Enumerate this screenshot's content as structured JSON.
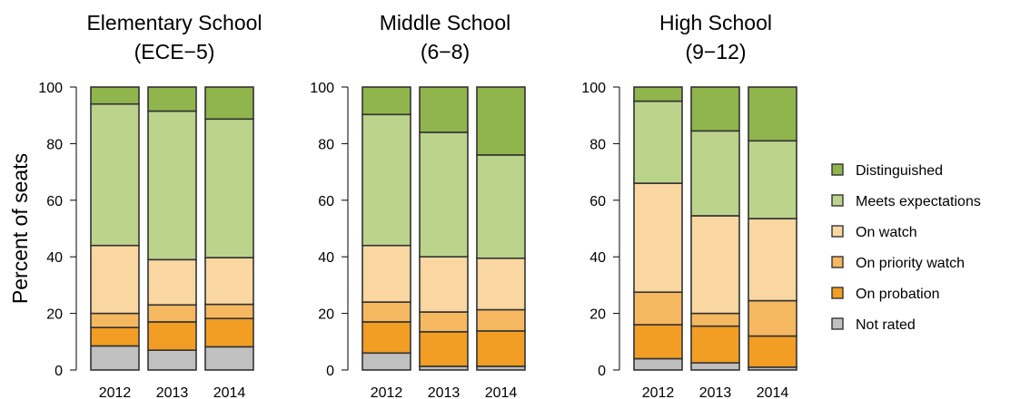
{
  "ylabel": "Percent of seats",
  "legend": {
    "placement": "right",
    "items": [
      {
        "label": "Distinguished",
        "color": "#8fb54c"
      },
      {
        "label": "Meets expectations",
        "color": "#bcd38c"
      },
      {
        "label": "On watch",
        "color": "#fad7a1"
      },
      {
        "label": "On priority watch",
        "color": "#f5b861"
      },
      {
        "label": "On probation",
        "color": "#f29d23"
      },
      {
        "label": "Not rated",
        "color": "#c0c0c0"
      }
    ]
  },
  "chart_data": [
    {
      "type": "bar",
      "stacked": true,
      "title_line1": "Elementary School",
      "title_line2": "(ECE−5)",
      "categories": [
        "2012",
        "2013",
        "2014"
      ],
      "ylim": [
        0,
        100
      ],
      "yticks": [
        "0",
        "20",
        "40",
        "60",
        "80",
        "100"
      ],
      "series": [
        {
          "name": "Not rated",
          "values": [
            8.5,
            7,
            8.2
          ]
        },
        {
          "name": "On probation",
          "values": [
            6.5,
            10,
            10
          ]
        },
        {
          "name": "On priority watch",
          "values": [
            5,
            6,
            5
          ]
        },
        {
          "name": "On watch",
          "values": [
            24,
            16,
            16.5
          ]
        },
        {
          "name": "Meets expectations",
          "values": [
            50,
            52.5,
            49
          ]
        },
        {
          "name": "Distinguished",
          "values": [
            6,
            8.5,
            11.3
          ]
        }
      ]
    },
    {
      "type": "bar",
      "stacked": true,
      "title_line1": "Middle School",
      "title_line2": "(6−8)",
      "categories": [
        "2012",
        "2013",
        "2014"
      ],
      "ylim": [
        0,
        100
      ],
      "yticks": [
        "0",
        "20",
        "40",
        "60",
        "80",
        "100"
      ],
      "series": [
        {
          "name": "Not rated",
          "values": [
            6,
            1.3,
            1.3
          ]
        },
        {
          "name": "On probation",
          "values": [
            11,
            12.2,
            12.5
          ]
        },
        {
          "name": "On priority watch",
          "values": [
            7,
            7,
            7.5
          ]
        },
        {
          "name": "On watch",
          "values": [
            20,
            19.5,
            18.2
          ]
        },
        {
          "name": "Meets expectations",
          "values": [
            46.3,
            44,
            36.5
          ]
        },
        {
          "name": "Distinguished",
          "values": [
            9.7,
            16,
            24
          ]
        }
      ]
    },
    {
      "type": "bar",
      "stacked": true,
      "title_line1": "High School",
      "title_line2": "(9−12)",
      "categories": [
        "2012",
        "2013",
        "2014"
      ],
      "ylim": [
        0,
        100
      ],
      "yticks": [
        "0",
        "20",
        "40",
        "60",
        "80",
        "100"
      ],
      "series": [
        {
          "name": "Not rated",
          "values": [
            4,
            2.5,
            1
          ]
        },
        {
          "name": "On probation",
          "values": [
            12,
            13,
            11
          ]
        },
        {
          "name": "On priority watch",
          "values": [
            11.5,
            4.5,
            12.5
          ]
        },
        {
          "name": "On watch",
          "values": [
            38.5,
            34.5,
            29
          ]
        },
        {
          "name": "Meets expectations",
          "values": [
            29,
            30,
            27.5
          ]
        },
        {
          "name": "Distinguished",
          "values": [
            5,
            15.5,
            19
          ]
        }
      ]
    }
  ]
}
